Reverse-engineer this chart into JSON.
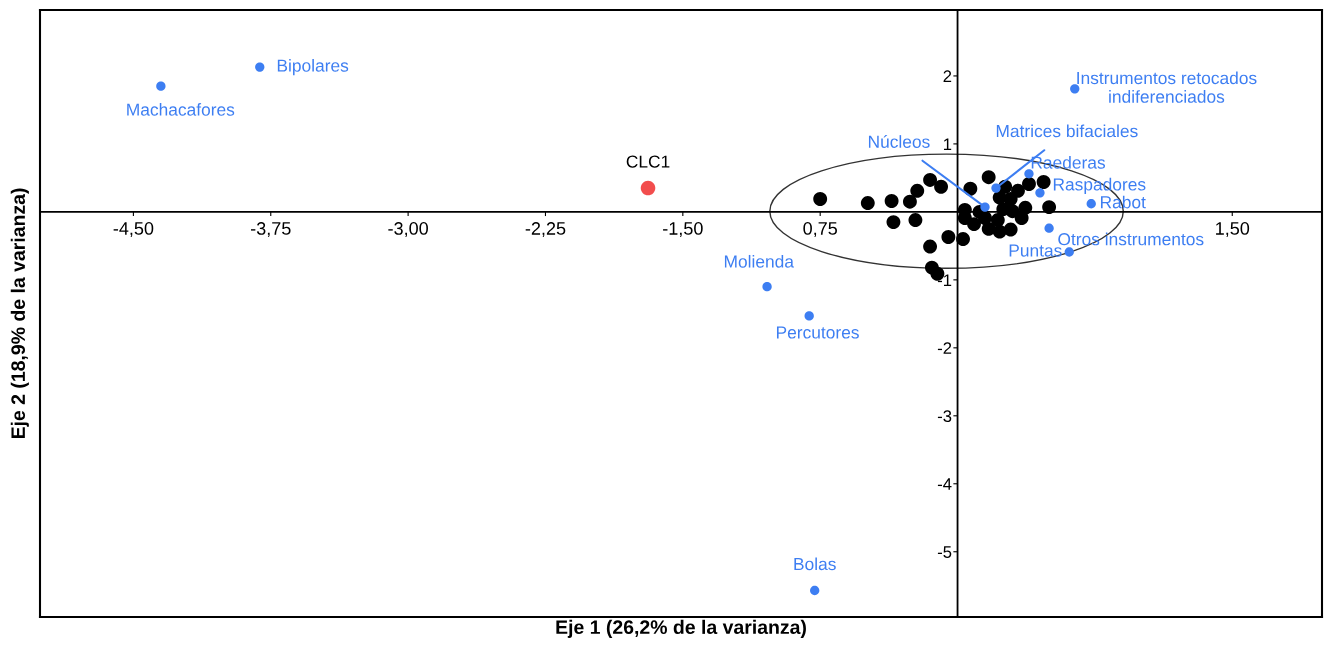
{
  "chart_data": {
    "type": "scatter",
    "xlabel": "Eje 1 (26,2% de la varianza)",
    "ylabel": "Eje 2 (18,9% de la varianza)",
    "xlim": [
      -5.01,
      1.99
    ],
    "ylim": [
      -5.96,
      2.97
    ],
    "xticks": [
      {
        "value": -4.5,
        "label": "-4,50"
      },
      {
        "value": -3.75,
        "label": "-3,75"
      },
      {
        "value": -3.0,
        "label": "-3,00"
      },
      {
        "value": -2.25,
        "label": "-2,25"
      },
      {
        "value": -1.5,
        "label": "-1,50"
      },
      {
        "value": -0.75,
        "label": "0,75"
      },
      {
        "value": 1.5,
        "label": "1,50"
      }
    ],
    "yticks": [
      2,
      1,
      -1,
      -2,
      -3,
      -4,
      -5
    ],
    "grid": false,
    "marker": "circle",
    "series": [
      {
        "color": "#000000",
        "x": [
          -0.75,
          -0.49,
          -0.36,
          -0.26,
          -0.22,
          -0.15,
          -0.09,
          -0.35,
          -0.23,
          -0.15,
          -0.05,
          0.03,
          -0.14,
          -0.11,
          0.04,
          0.04,
          0.07,
          0.12,
          0.09,
          0.15,
          0.17,
          0.17,
          0.22,
          0.23,
          0.23,
          0.26,
          0.25,
          0.29,
          0.3,
          0.29,
          0.33,
          0.37,
          0.35,
          0.39,
          0.47,
          0.5
        ],
        "values": [
          0.19,
          0.13,
          0.16,
          0.15,
          0.31,
          0.47,
          0.37,
          -0.15,
          -0.12,
          -0.51,
          -0.37,
          -0.4,
          -0.82,
          -0.91,
          0.03,
          -0.09,
          0.34,
          0.0,
          -0.18,
          -0.09,
          0.51,
          -0.25,
          -0.12,
          0.21,
          -0.29,
          0.37,
          0.04,
          0.19,
          0.01,
          -0.26,
          0.31,
          0.06,
          -0.09,
          0.41,
          0.44,
          0.07
        ]
      },
      {
        "color": "#3d7ef2",
        "x": [
          -4.35,
          -3.81,
          0.64,
          0.15,
          0.21,
          0.39,
          0.45,
          0.73,
          0.5,
          0.61,
          -1.04,
          -0.81,
          -0.78
        ],
        "values": [
          1.85,
          2.13,
          1.81,
          0.07,
          0.35,
          0.56,
          0.28,
          0.12,
          -0.24,
          -0.59,
          -1.1,
          -1.53,
          -5.57
        ]
      },
      {
        "color": "#f24d4d",
        "x": [
          -1.69
        ],
        "values": [
          0.35
        ]
      }
    ],
    "annotations": [
      {
        "text": "Machacafores",
        "x": -4.35,
        "y": 1.85
      },
      {
        "text": "Bipolares",
        "x": -3.81,
        "y": 2.13
      },
      {
        "text": "Instrumentos retocados\nindiferenciados",
        "x": 0.64,
        "y": 1.81
      },
      {
        "text": "Núcleos",
        "x": 0.15,
        "y": 0.07
      },
      {
        "text": "Matrices bifaciales",
        "x": 0.21,
        "y": 0.35
      },
      {
        "text": "Raederas",
        "x": 0.39,
        "y": 0.56
      },
      {
        "text": "Raspadores",
        "x": 0.45,
        "y": 0.28
      },
      {
        "text": "Rabot",
        "x": 0.73,
        "y": 0.12
      },
      {
        "text": "Otros instrumentos",
        "x": 0.5,
        "y": -0.24
      },
      {
        "text": "Puntas",
        "x": 0.61,
        "y": -0.59
      },
      {
        "text": "Molienda",
        "x": -1.04,
        "y": -1.1
      },
      {
        "text": "Percutores",
        "x": -0.81,
        "y": -1.53
      },
      {
        "text": "Bolas",
        "x": -0.78,
        "y": -5.57
      },
      {
        "text": "CLC1",
        "x": -1.69,
        "y": 0.35
      }
    ]
  }
}
